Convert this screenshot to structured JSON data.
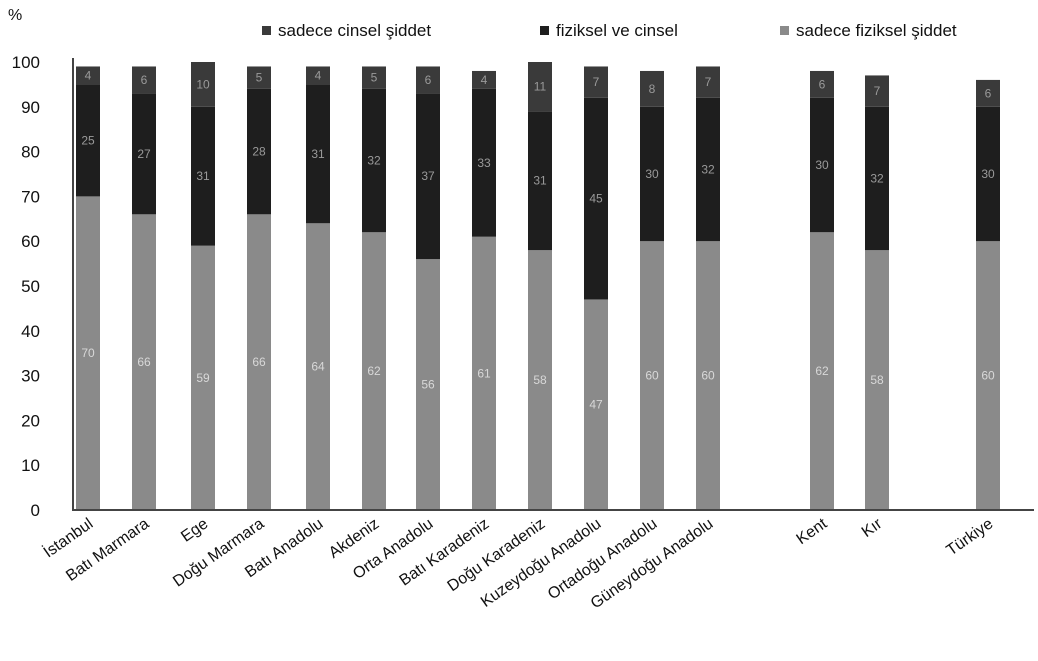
{
  "chart_data": {
    "type": "bar",
    "stacked": true,
    "y_unit_label": "%",
    "ylim": [
      0,
      100
    ],
    "yticks": [
      0,
      10,
      20,
      30,
      40,
      50,
      60,
      70,
      80,
      90,
      100
    ],
    "categories": [
      "İstanbul",
      "Batı Marmara",
      "Ege",
      "Doğu Marmara",
      "Batı Anadolu",
      "Akdeniz",
      "Orta Anadolu",
      "Batı Karadeniz",
      "Doğu Karadeniz",
      "Kuzeydoğu Anadolu",
      "Ortadoğu Anadolu",
      "Güneydoğu Anadolu",
      "Kent",
      "Kır",
      "Türkiye"
    ],
    "series": [
      {
        "name": "sadece fiziksel şiddet",
        "color": "#8a8a8a",
        "values": [
          70,
          66,
          59,
          66,
          64,
          62,
          56,
          61,
          58,
          47,
          60,
          60,
          62,
          58,
          60
        ]
      },
      {
        "name": "fiziksel ve cinsel",
        "color": "#1e1e1e",
        "values": [
          25,
          27,
          31,
          28,
          31,
          32,
          37,
          33,
          31,
          45,
          30,
          32,
          30,
          32,
          30
        ]
      },
      {
        "name": "sadece cinsel şiddet",
        "color": "#3a3a3a",
        "values": [
          4,
          6,
          10,
          5,
          4,
          5,
          6,
          4,
          11,
          7,
          8,
          7,
          6,
          7,
          6
        ]
      }
    ],
    "legend_position": "top",
    "legend_order": [
      "sadece cinsel şiddet",
      "fiziksel ve cinsel",
      "sadece fiziksel şiddet"
    ],
    "grid": false
  }
}
